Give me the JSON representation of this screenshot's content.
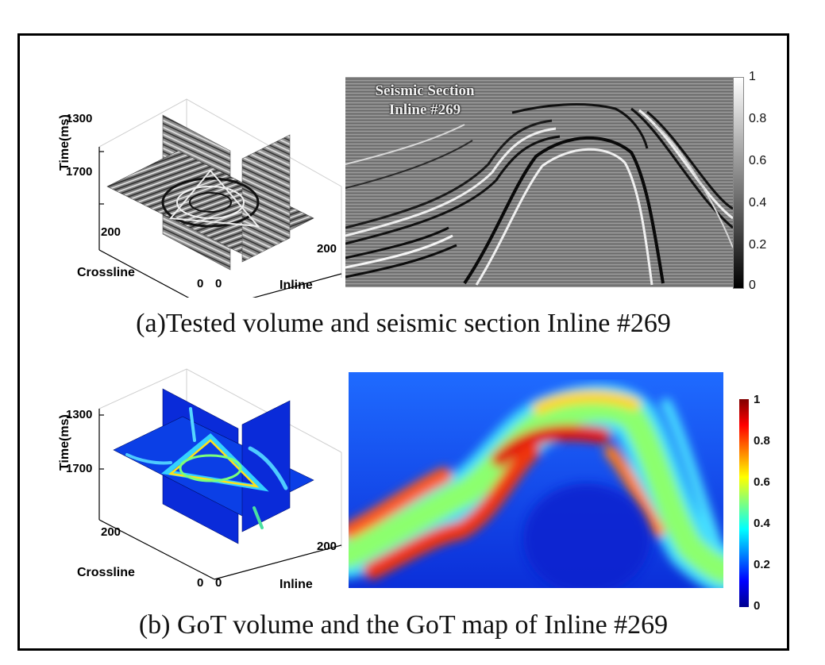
{
  "panel_a": {
    "volume": {
      "ylabel": "Time(ms)",
      "yticks": [
        "1300",
        "1700"
      ],
      "crossline_label": "Crossline",
      "crossline_ticks": [
        "200",
        "0"
      ],
      "inline_label": "Inline",
      "inline_ticks": [
        "0",
        "200"
      ]
    },
    "section": {
      "title_line1": "Seismic Section",
      "title_line2": "Inline #269"
    },
    "colorbar": {
      "ticks": [
        "1",
        "0.8",
        "0.6",
        "0.4",
        "0.2",
        "0"
      ],
      "colormap": "gray"
    },
    "caption": "(a)Tested volume and seismic section Inline #269"
  },
  "panel_b": {
    "volume": {
      "ylabel": "Time(ms)",
      "yticks": [
        "1300",
        "1700"
      ],
      "crossline_label": "Crossline",
      "crossline_ticks": [
        "200",
        "0"
      ],
      "inline_label": "Inline",
      "inline_ticks": [
        "0",
        "200"
      ]
    },
    "colorbar": {
      "ticks": [
        "1",
        "0.8",
        "0.6",
        "0.4",
        "0.2",
        "0"
      ],
      "colormap": "jet"
    },
    "caption": "(b) GoT volume and the GoT map of Inline #269"
  },
  "colors": {
    "frame": "#000000",
    "jet_low": "#00008f",
    "jet_mid": "#7fff7f",
    "jet_high": "#800000"
  }
}
